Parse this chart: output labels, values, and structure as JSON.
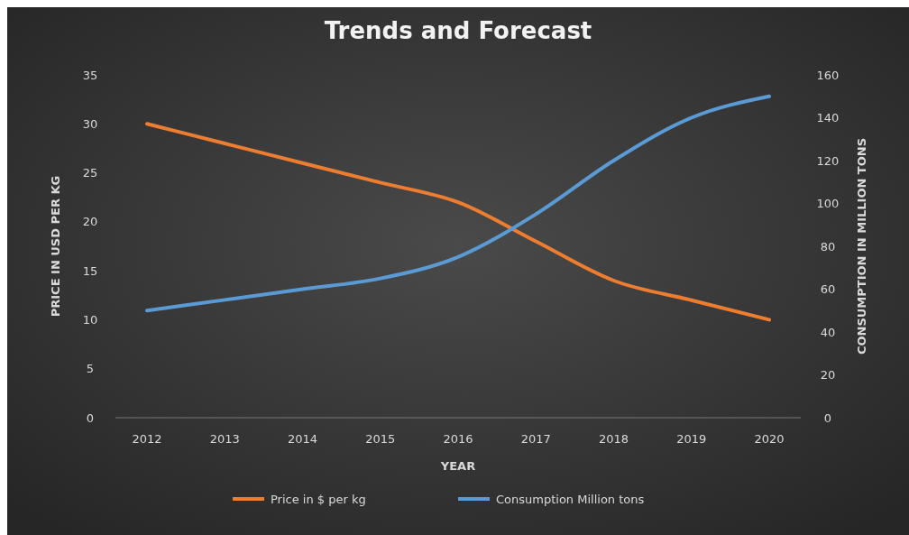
{
  "chart_data": {
    "type": "line",
    "title": "Trends and Forecast",
    "xlabel": "YEAR",
    "ylabel": "PRICE IN USD PER KG",
    "y2label": "CONSUMPTION IN MILLION TONS",
    "categories": [
      "2012",
      "2013",
      "2014",
      "2015",
      "2016",
      "2017",
      "2018",
      "2019",
      "2020"
    ],
    "series": [
      {
        "name": "Price in $ per kg",
        "color": "#ed7d31",
        "values": [
          30,
          28,
          26,
          24,
          22,
          18,
          14,
          12,
          10
        ]
      },
      {
        "name": "Consumption Million tons",
        "color": "#5b9bd5",
        "axis": "y2",
        "values": [
          50,
          55,
          60,
          65,
          75,
          95,
          120,
          140,
          150
        ]
      }
    ],
    "ylim": [
      0,
      35
    ],
    "yticks": [
      0,
      5,
      10,
      15,
      20,
      25,
      30,
      35
    ],
    "y2lim": [
      0,
      160
    ],
    "y2ticks": [
      0,
      20,
      40,
      60,
      80,
      100,
      120,
      140,
      160
    ],
    "grid": false,
    "legend": "bottom",
    "marker": "none",
    "line_style": "solid"
  }
}
